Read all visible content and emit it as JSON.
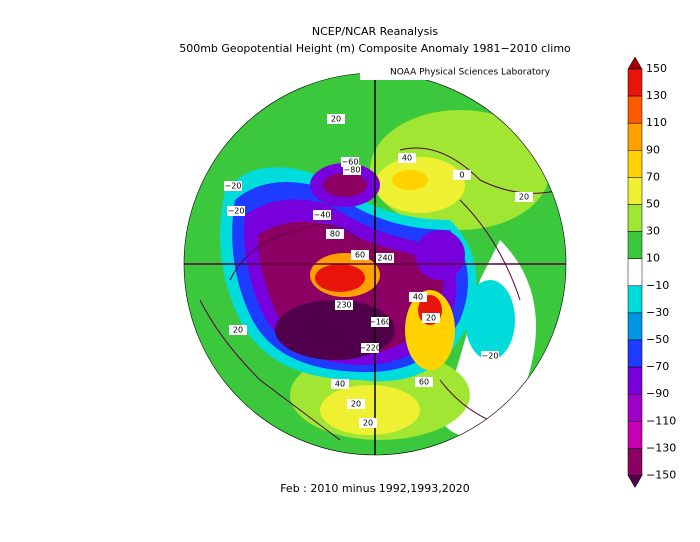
{
  "map": {
    "title": "NCEP/NCAR Reanalysis",
    "subtitle": "500mb Geopotential Height (m) Composite Anomaly 1981−2010 climo",
    "credit": "NOAA Physical Sciences Laboratory",
    "caption": "Feb : 2010 minus 1992,1993,2020",
    "colorbar": {
      "labels": [
        "150",
        "130",
        "110",
        "90",
        "70",
        "50",
        "30",
        "10",
        "−10",
        "−30",
        "−50",
        "−70",
        "−90",
        "−110",
        "−130",
        "−150"
      ],
      "colors": [
        "#a00000",
        "#e8140a",
        "#ff5a00",
        "#ffa000",
        "#ffd200",
        "#f0f032",
        "#a0e632",
        "#3cc83c",
        "#ffffff",
        "#00dcdc",
        "#0096e6",
        "#1e3cff",
        "#7800dc",
        "#a000c8",
        "#c800b4",
        "#8c0064",
        "#50004b"
      ]
    },
    "contour_labels": [
      "20",
      "−60",
      "−80",
      "40",
      "0",
      "−20",
      "−40",
      "80",
      "60",
      "240",
      "230",
      "−160",
      "−220",
      "40",
      "20",
      "−20",
      "20",
      "60",
      "40",
      "20",
      "20",
      "20",
      "−20"
    ]
  }
}
